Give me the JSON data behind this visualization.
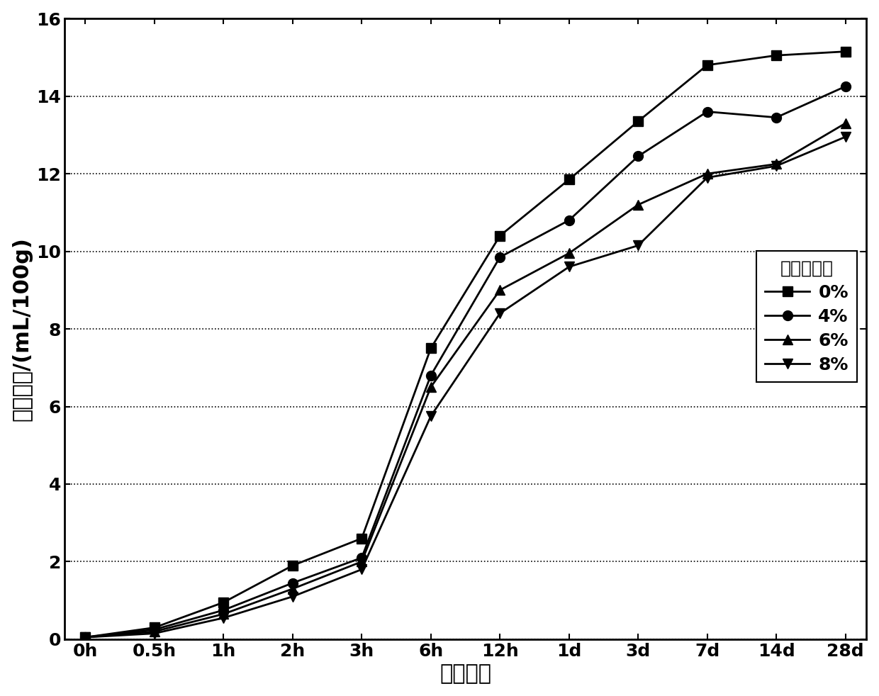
{
  "x_labels": [
    "0h",
    "0.5h",
    "1h",
    "2h",
    "3h",
    "6h",
    "12h",
    "1d",
    "3d",
    "7d",
    "14d",
    "28d"
  ],
  "x_positions": [
    0,
    1,
    2,
    3,
    4,
    5,
    6,
    7,
    8,
    9,
    10,
    11
  ],
  "series": [
    {
      "label": "0%",
      "marker": "s",
      "color": "#000000",
      "values": [
        0.05,
        0.3,
        0.95,
        1.9,
        2.6,
        7.5,
        10.4,
        11.85,
        13.35,
        14.8,
        15.05,
        15.15
      ]
    },
    {
      "label": "4%",
      "marker": "o",
      "color": "#000000",
      "values": [
        0.05,
        0.25,
        0.75,
        1.45,
        2.1,
        6.8,
        9.85,
        10.8,
        12.45,
        13.6,
        13.45,
        14.25
      ]
    },
    {
      "label": "6%",
      "marker": "^",
      "color": "#000000",
      "values": [
        0.05,
        0.2,
        0.65,
        1.3,
        2.0,
        6.5,
        9.0,
        9.95,
        11.2,
        12.0,
        12.25,
        13.3
      ]
    },
    {
      "label": "8%",
      "marker": "v",
      "color": "#000000",
      "values": [
        0.05,
        0.15,
        0.55,
        1.1,
        1.8,
        5.75,
        8.4,
        9.6,
        10.15,
        11.9,
        12.2,
        12.95
      ]
    }
  ],
  "ylabel": "化学收缩/(mL/100g)",
  "xlabel": "水化时间",
  "legend_title": "外加剂渗量",
  "ylim": [
    0,
    16
  ],
  "yticks": [
    0,
    2,
    4,
    6,
    8,
    10,
    12,
    14,
    16
  ],
  "label_fontsize": 22,
  "tick_fontsize": 18,
  "legend_fontsize": 18,
  "marker_size": 10,
  "line_width": 2.0,
  "background_color": "#ffffff",
  "grid_color": "#000000",
  "grid_linestyle": ":"
}
